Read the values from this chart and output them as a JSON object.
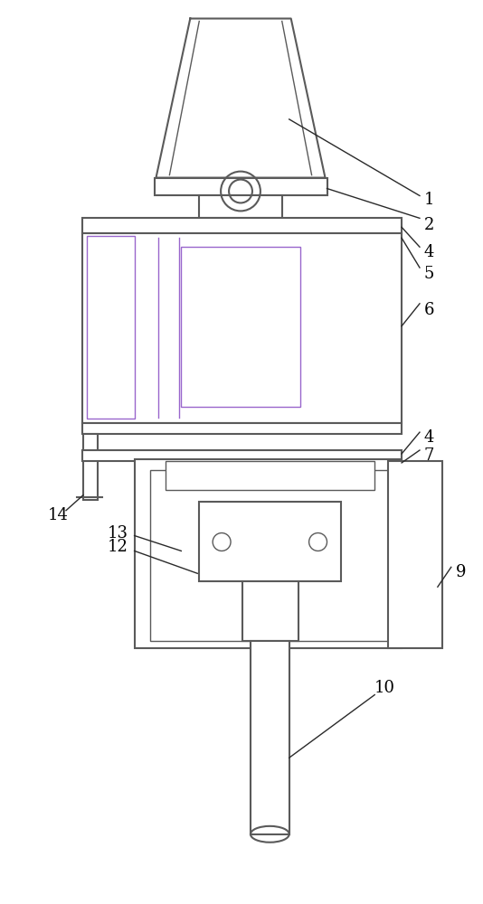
{
  "bg_color": "#ffffff",
  "line_color": "#5a5a5a",
  "lw_main": 1.5,
  "lw_thin": 1.0,
  "fig_width": 5.34,
  "fig_height": 10.0,
  "purple_color": "#9966cc",
  "gray_color": "#808080"
}
